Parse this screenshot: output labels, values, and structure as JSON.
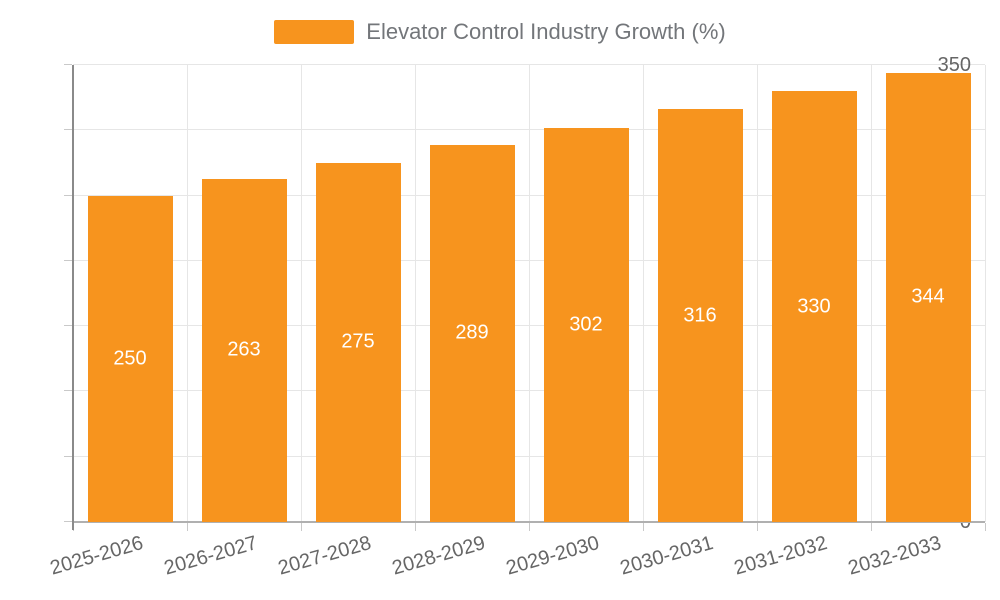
{
  "legend": {
    "swatch_color": "#F7941E",
    "label": "Elevator Control Industry Growth (%)"
  },
  "colors": {
    "bar": "#F7941E",
    "grid_line": "#E6E6E6",
    "x_axis_line": "#B0B0B0",
    "y_axis_line": "#8A8A8A",
    "tick_mark": "#C9C9C9",
    "axis_label_text": "#666666",
    "legend_text": "#73767A",
    "value_label_text": "#FFFFFF",
    "background": "#FFFFFF"
  },
  "chart_data": {
    "type": "bar",
    "title": "",
    "xlabel": "",
    "ylabel": "",
    "categories": [
      "2025-2026",
      "2026-2027",
      "2027-2028",
      "2028-2029",
      "2029-2030",
      "2030-2031",
      "2031-2032",
      "2032-2033"
    ],
    "series": [
      {
        "name": "Elevator Control Industry Growth (%)",
        "values": [
          250,
          263,
          275,
          289,
          302,
          316,
          330,
          344
        ]
      }
    ],
    "value_labels": "inside-middle",
    "ylim": [
      0,
      350
    ],
    "yticks": [
      0,
      50,
      100,
      150,
      200,
      250,
      300,
      350
    ],
    "grid": true,
    "legend_position": "top-center",
    "x_label_rotation_deg": -16
  }
}
